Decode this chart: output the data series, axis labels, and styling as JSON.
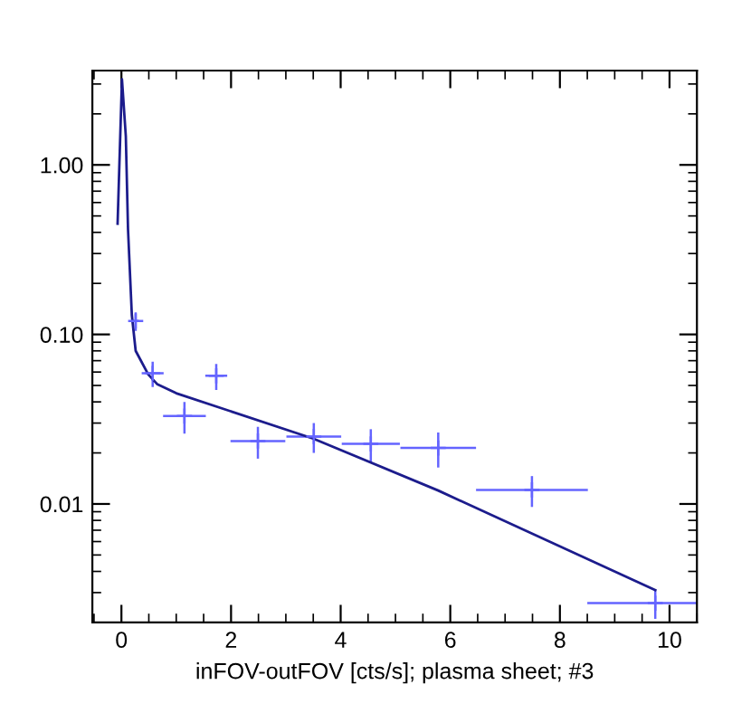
{
  "chart_data": {
    "type": "scatter",
    "xlabel": "inFOV-outFOV [cts/s]; plasma sheet; #3",
    "log": "y",
    "xlim": [
      -0.53,
      10.5
    ],
    "ylim": [
      0.002,
      3.6
    ],
    "xticks": [
      0,
      2,
      4,
      6,
      8,
      10
    ],
    "yticks": [
      {
        "value": 1,
        "label": "1.00"
      },
      {
        "value": 0.1,
        "label": "0.10"
      },
      {
        "value": 0.01,
        "label": "0.01"
      }
    ],
    "grid": false,
    "marker": "cross",
    "series": [
      {
        "color": "#6464ff",
        "x": [
          0.26,
          0.57,
          1.15,
          1.73,
          2.49,
          3.51,
          4.55,
          5.78,
          7.49,
          9.74
        ],
        "values": [
          0.12,
          0.059,
          0.033,
          0.057,
          0.0235,
          0.025,
          0.0226,
          0.0214,
          0.0121,
          0.0026
        ],
        "errors": [
          0.015,
          0.01,
          0.007,
          0.01,
          0.005,
          0.005,
          0.005,
          0.005,
          0.0025,
          0.0005
        ],
        "xerrors": [
          0.06,
          0.2,
          0.39,
          0.2,
          0.5,
          0.5,
          0.53,
          0.69,
          1.02,
          1.24
        ]
      },
      {
        "type": "line",
        "marker": "none",
        "color": "#1c1c8c",
        "line_style": "solid",
        "x": [
          -0.07,
          0.01,
          0.08,
          0.12,
          0.19,
          0.26,
          0.49,
          0.65,
          1.0,
          3.5,
          5.78,
          9.74
        ],
        "values": [
          0.45,
          3.2,
          1.48,
          0.42,
          0.13,
          0.08,
          0.058,
          0.051,
          0.045,
          0.0243,
          0.012,
          0.0031
        ]
      }
    ]
  }
}
